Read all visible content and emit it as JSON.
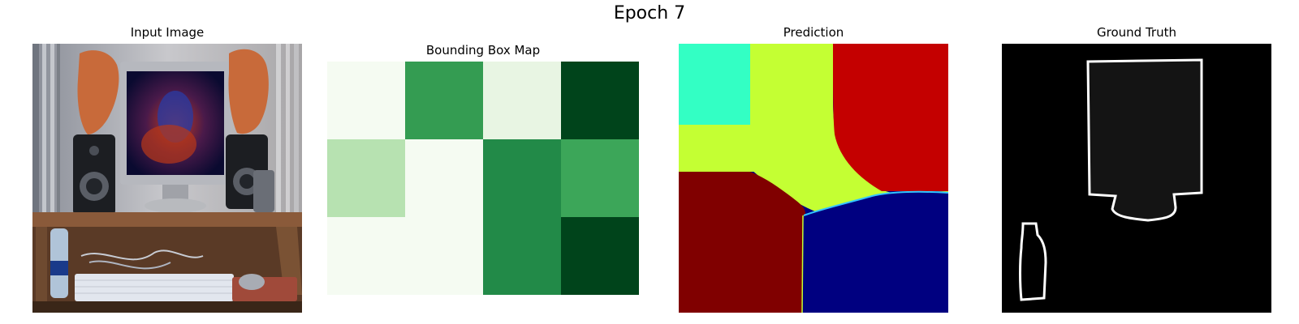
{
  "figure": {
    "title": "Epoch 7"
  },
  "panels": {
    "input": {
      "title": "Input Image"
    },
    "bbox": {
      "title": "Bounding Box Map"
    },
    "prediction": {
      "title": "Prediction"
    },
    "ground_truth": {
      "title": "Ground Truth"
    }
  },
  "chart_data": [
    {
      "type": "heatmap",
      "title": "Bounding Box Map",
      "colormap": "Greens",
      "rows": 3,
      "cols": 4,
      "values": [
        [
          0.03,
          0.75,
          0.1,
          1.0
        ],
        [
          0.3,
          0.03,
          0.8,
          0.65
        ],
        [
          0.03,
          0.03,
          0.8,
          1.0
        ]
      ],
      "colors": [
        [
          "#f5fbf2",
          "#349c52",
          "#e8f5e3",
          "#00441b"
        ],
        [
          "#b7e2b1",
          "#f5fbf2",
          "#228a48",
          "#3ca659"
        ],
        [
          "#f5fbf2",
          "#f5fbf2",
          "#228a48",
          "#00441b"
        ]
      ],
      "axes": "off"
    },
    {
      "type": "heatmap",
      "title": "Prediction",
      "colormap": "jet",
      "description_classes": [
        "cyan",
        "yellow-green",
        "red",
        "dark red",
        "navy"
      ],
      "colors": {
        "cyan": "#33ffc4",
        "yellowgreen": "#c4ff33",
        "red": "#c40000",
        "darkred": "#800000",
        "navy": "#000080"
      },
      "axes": "off"
    },
    {
      "type": "heatmap",
      "title": "Ground Truth",
      "colors": {
        "background": "#000000",
        "fill": "#141414",
        "outline": "#ffffff"
      },
      "axes": "off"
    }
  ]
}
